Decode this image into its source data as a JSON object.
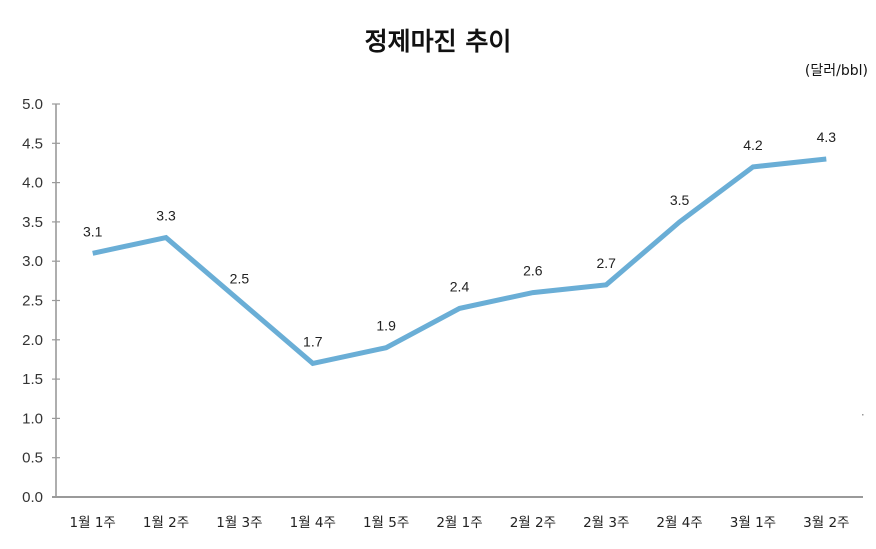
{
  "chart_data": {
    "type": "line",
    "title": "정제마진 추이",
    "unit": "(달러/bbl)",
    "xlabel": "",
    "ylabel": "달러/bbl",
    "ylim": [
      0.0,
      5.0
    ],
    "yticks": [
      "0.0",
      "0.5",
      "1.0",
      "1.5",
      "2.0",
      "2.5",
      "3.0",
      "3.5",
      "4.0",
      "4.5",
      "5.0"
    ],
    "grid": false,
    "legend": null,
    "categories": [
      "1월 1주",
      "1월 2주",
      "1월 3주",
      "1월 4주",
      "1월 5주",
      "2월 1주",
      "2월 2주",
      "2월 3주",
      "2월 4주",
      "3월 1주",
      "3월 2주"
    ],
    "series": [
      {
        "name": "정제마진",
        "color": "#6aaed6",
        "values": [
          3.1,
          3.3,
          2.5,
          1.7,
          1.9,
          2.4,
          2.6,
          2.7,
          3.5,
          4.2,
          4.3
        ],
        "labels": [
          "3.1",
          "3.3",
          "2.5",
          "1.7",
          "1.9",
          "2.4",
          "2.6",
          "2.7",
          "3.5",
          "4.2",
          "4.3"
        ]
      }
    ]
  },
  "colors": {
    "line": "#6aaed6",
    "axis": "#9a9a9a",
    "text": "#222222"
  }
}
